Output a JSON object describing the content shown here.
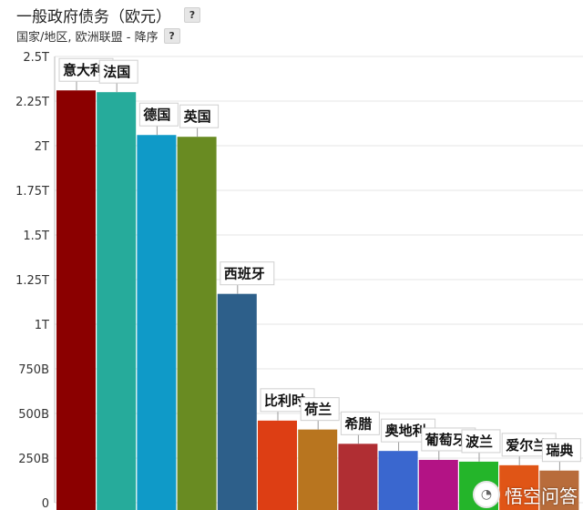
{
  "header": {
    "title": "一般政府债务（欧元）",
    "subtitle": "国家/地区, 欧洲联盟 - 降序",
    "help_label": "?"
  },
  "watermark": {
    "text": "悟空问答"
  },
  "chart_data": {
    "type": "bar",
    "title": "一般政府债务（欧元）",
    "subtitle": "国家/地区, 欧洲联盟 - 降序",
    "xlabel": "",
    "ylabel": "",
    "ylim": [
      0,
      2.5
    ],
    "unit": "T",
    "yticks": [
      "0",
      "250B",
      "500B",
      "750B",
      "1T",
      "1.25T",
      "1.5T",
      "1.75T",
      "2T",
      "2.25T",
      "2.5T"
    ],
    "ytick_values": [
      0,
      0.25,
      0.5,
      0.75,
      1.0,
      1.25,
      1.5,
      1.75,
      2.0,
      2.25,
      2.5
    ],
    "grid": true,
    "categories": [
      "意大利",
      "法国",
      "德国",
      "英国",
      "西班牙",
      "比利时",
      "荷兰",
      "希腊",
      "奥地利",
      "葡萄牙",
      "波兰",
      "爱尔兰",
      "瑞典"
    ],
    "values": [
      2.31,
      2.3,
      2.06,
      2.05,
      1.17,
      0.46,
      0.41,
      0.33,
      0.29,
      0.24,
      0.23,
      0.21,
      0.18
    ],
    "colors": [
      "#8b0000",
      "#26ab9b",
      "#0f9ac8",
      "#698b22",
      "#2d5f8a",
      "#dd3e14",
      "#b8751f",
      "#b02e33",
      "#3a67cf",
      "#b31385",
      "#24b52a",
      "#e05516",
      "#b86c3b"
    ]
  }
}
